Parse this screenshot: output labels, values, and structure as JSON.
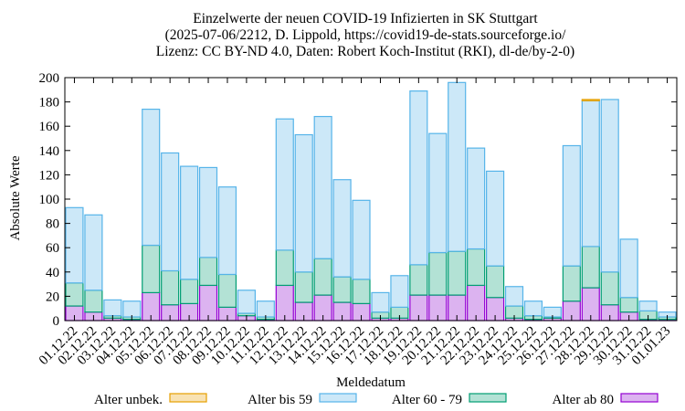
{
  "chart_data": {
    "type": "bar",
    "stacked": true,
    "title_lines": [
      "Einzelwerte der neuen COVID-19 Infizierten in SK Stuttgart",
      "(2025-07-06/2212, D. Lippold, https://covid19-de-stats.sourceforge.io/",
      "Lizenz: CC BY-ND 4.0, Daten: Robert Koch-Institut (RKI), dl-de/by-2-0)"
    ],
    "xlabel": "Meldedatum",
    "ylabel": "Absolute Werte",
    "ylim": [
      0,
      200
    ],
    "yticks": [
      0,
      20,
      40,
      60,
      80,
      100,
      120,
      140,
      160,
      180,
      200
    ],
    "legend_placement": "bottom",
    "categories": [
      "01.12.22",
      "02.12.22",
      "03.12.22",
      "04.12.22",
      "05.12.22",
      "06.12.22",
      "07.12.22",
      "08.12.22",
      "09.12.22",
      "10.12.22",
      "11.12.22",
      "12.12.22",
      "13.12.22",
      "14.12.22",
      "15.12.22",
      "16.12.22",
      "17.12.22",
      "18.12.22",
      "19.12.22",
      "20.12.22",
      "21.12.22",
      "22.12.22",
      "23.12.22",
      "24.12.22",
      "25.12.22",
      "26.12.22",
      "27.12.22",
      "28.12.22",
      "29.12.22",
      "30.12.22",
      "31.12.22",
      "01.01.23"
    ],
    "series": [
      {
        "name": "Alter ab 80",
        "color": "#9400d3",
        "fill": "#dcb3f0",
        "values": [
          12,
          7,
          2,
          1,
          23,
          13,
          14,
          29,
          11,
          4,
          1,
          29,
          15,
          21,
          15,
          14,
          2,
          2,
          21,
          21,
          21,
          29,
          19,
          2,
          1,
          2,
          16,
          27,
          13,
          7,
          1,
          1
        ]
      },
      {
        "name": "Alter 60 - 79",
        "color": "#009e73",
        "fill": "#b3e2d5",
        "values": [
          19,
          18,
          2,
          2,
          39,
          28,
          20,
          23,
          27,
          2,
          2,
          29,
          25,
          30,
          21,
          20,
          5,
          9,
          25,
          35,
          36,
          30,
          26,
          10,
          3,
          1,
          29,
          34,
          27,
          12,
          7,
          2
        ]
      },
      {
        "name": "Alter bis 59",
        "color": "#56b4e9",
        "fill": "#cce8f8",
        "values": [
          62,
          62,
          13,
          13,
          112,
          97,
          93,
          74,
          72,
          19,
          13,
          108,
          113,
          117,
          80,
          65,
          16,
          26,
          143,
          98,
          139,
          83,
          78,
          16,
          12,
          8,
          99,
          120,
          142,
          48,
          8,
          4
        ]
      },
      {
        "name": "Alter unbek.",
        "color": "#e69f00",
        "fill": "#f8e2b3",
        "values": [
          0,
          0,
          0,
          0,
          0,
          0,
          0,
          0,
          0,
          0,
          0,
          0,
          0,
          0,
          0,
          0,
          0,
          0,
          0,
          0,
          0,
          0,
          0,
          0,
          0,
          0,
          0,
          1,
          0,
          0,
          0,
          0
        ]
      }
    ],
    "legend_order": [
      "Alter unbek.",
      "Alter bis 59",
      "Alter 60 - 79",
      "Alter ab 80"
    ]
  }
}
